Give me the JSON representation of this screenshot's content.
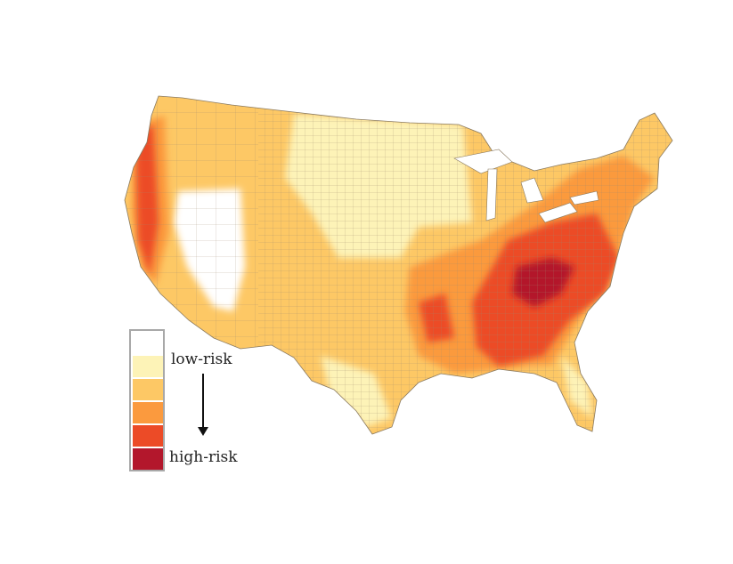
{
  "legend": {
    "low_label": "low-risk",
    "high_label": "high-risk",
    "classes": [
      {
        "color": "#ffffff"
      },
      {
        "color": "#fdf3b7"
      },
      {
        "color": "#fdc865"
      },
      {
        "color": "#fb9a3e"
      },
      {
        "color": "#ec4b27"
      },
      {
        "color": "#b3172c"
      }
    ]
  }
}
